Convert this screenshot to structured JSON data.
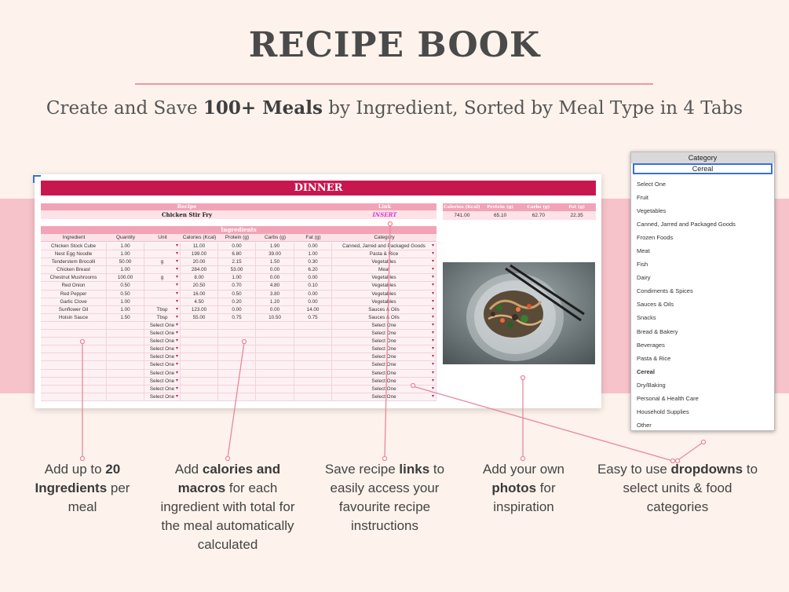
{
  "header": {
    "title": "RECIPE BOOK",
    "subtitle_pre": "Create and Save ",
    "subtitle_bold1": "100+ Meals",
    "subtitle_mid": " by Ingredient, Sorted by Meal Type in 4 Tabs"
  },
  "sheet": {
    "tab_title": "DINNER",
    "recipe_label": "Recipe",
    "link_label": "Link",
    "recipe_name": "Chicken Stir Fry",
    "link_value": "INSERT",
    "totals_headers": [
      "Calories (Kcal)",
      "Protein (g)",
      "Carbs (g)",
      "Fat (g)"
    ],
    "totals_values": [
      "741.00",
      "65.10",
      "62.70",
      "22.35"
    ],
    "ingredients_label": "Ingredients",
    "columns": [
      "Ingredient",
      "Quantity",
      "Unit",
      "Calories (Kcal)",
      "Protein (g)",
      "Carbs (g)",
      "Fat (g)",
      "Category"
    ],
    "rows": [
      [
        "Chicken Stock Cube",
        "1.00",
        "",
        "11.00",
        "0.00",
        "1.90",
        "0.00",
        "Canned, Jarred and Packaged Goods"
      ],
      [
        "Nest Egg Noodle",
        "1.00",
        "",
        "199.00",
        "6.80",
        "39.00",
        "1.00",
        "Pasta & Rice"
      ],
      [
        "Tenderstem Brocolli",
        "50.00",
        "g",
        "20.00",
        "2.15",
        "1.50",
        "0.30",
        "Vegetables"
      ],
      [
        "Chicken Breast",
        "1.00",
        "",
        "284.00",
        "53.00",
        "0.00",
        "6.20",
        "Meat"
      ],
      [
        "Chestnut Mushrooms",
        "100.00",
        "g",
        "8.00",
        "1.00",
        "0.00",
        "0.00",
        "Vegetables"
      ],
      [
        "Red Onion",
        "0.50",
        "",
        "20.50",
        "0.70",
        "4.80",
        "0.10",
        "Vegetables"
      ],
      [
        "Red Pepper",
        "0.50",
        "",
        "16.00",
        "0.50",
        "3.80",
        "0.00",
        "Vegetables"
      ],
      [
        "Garlic Clove",
        "1.00",
        "",
        "4.50",
        "0.20",
        "1.20",
        "0.00",
        "Vegetables"
      ],
      [
        "Sunflower Oil",
        "1.00",
        "Tbsp",
        "123.00",
        "0.00",
        "0.00",
        "14.00",
        "Sauces & Oils"
      ],
      [
        "Hoisin Sauce",
        "1.50",
        "Tbsp",
        "55.00",
        "0.75",
        "10.50",
        "0.75",
        "Sauces & Oils"
      ],
      [
        "",
        "",
        "Select One",
        "",
        "",
        "",
        "",
        "Select One"
      ],
      [
        "",
        "",
        "Select One",
        "",
        "",
        "",
        "",
        "Select One"
      ],
      [
        "",
        "",
        "Select One",
        "",
        "",
        "",
        "",
        "Select One"
      ],
      [
        "",
        "",
        "Select One",
        "",
        "",
        "",
        "",
        "Select One"
      ],
      [
        "",
        "",
        "Select One",
        "",
        "",
        "",
        "",
        "Select One"
      ],
      [
        "",
        "",
        "Select One",
        "",
        "",
        "",
        "",
        "Select One"
      ],
      [
        "",
        "",
        "Select One",
        "",
        "",
        "",
        "",
        "Select One"
      ],
      [
        "",
        "",
        "Select One",
        "",
        "",
        "",
        "",
        "Select One"
      ],
      [
        "",
        "",
        "Select One",
        "",
        "",
        "",
        "",
        "Select One"
      ],
      [
        "",
        "",
        "Select One",
        "",
        "",
        "",
        "",
        "Select One"
      ]
    ]
  },
  "dropdown": {
    "header": "Category",
    "input_value": "Cereal",
    "options": [
      "Select One",
      "Fruit",
      "Vegetables",
      "Canned, Jarred and Packaged Goods",
      "Frozen Foods",
      "Meat",
      "Fish",
      "Dairy",
      "Condiments & Spices",
      "Sauces & Oils",
      "Snacks",
      "Bread & Bakery",
      "Beverages",
      "Pasta & Rice",
      "Cereal",
      "Dry/Baking",
      "Personal & Health Care",
      "Household Supplies",
      "Other"
    ],
    "selected_index": 14
  },
  "callouts": {
    "c1": {
      "a": "Add up to ",
      "b": "20 Ingredients",
      "c": " per meal"
    },
    "c2": {
      "a": "Add ",
      "b": "calories and macros",
      "c": " for each ingredient with total for the meal automatically calculated"
    },
    "c3": {
      "a": "Save recipe ",
      "b": "links",
      "c": " to easily access your favourite recipe instructions"
    },
    "c4": {
      "a": "Add your own ",
      "b": "photos",
      "c": " for inspiration"
    },
    "c5": {
      "a": "Easy to use ",
      "b": "dropdowns",
      "c": " to select units & food categories"
    }
  },
  "colors": {
    "accent": "#c8174f",
    "pink_header": "#f2a3b7",
    "band": "#f7c3cb",
    "background": "#fdf2ec",
    "connector": "#e8899a"
  }
}
